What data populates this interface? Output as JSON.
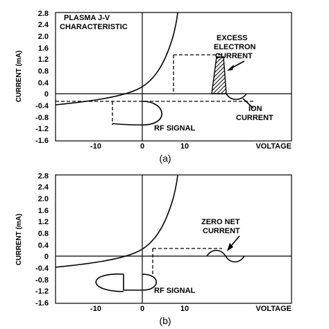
{
  "panel_a": {
    "y_ticks": [
      "2.8",
      "2.4",
      "2.0",
      "1.6",
      "1.2",
      "0.8",
      "0.4",
      "0",
      "-0.4",
      "-0.8",
      "-1.2",
      "-1.6"
    ],
    "x_ticks": [
      "-10",
      "0",
      "10"
    ],
    "y_axis_label": "CURRENT (mA)",
    "x_axis_label": "VOLTAGE",
    "title_line1": "PLASMA J-V",
    "title_line2": "CHARACTERISTIC",
    "excess_line1": "EXCESS",
    "excess_line2": "ELECTRON",
    "excess_line3": "CURRENT",
    "ion_line1": "ION",
    "ion_line2": "CURRENT",
    "rf_label": "RF SIGNAL",
    "caption": "(a)"
  },
  "panel_b": {
    "y_ticks": [
      "2.8",
      "2.4",
      "2.0",
      "1.6",
      "1.2",
      "0.8",
      "0.4",
      "0",
      "-0.4",
      "-0.8",
      "-1.2",
      "-1.6"
    ],
    "x_ticks": [
      "-10",
      "0",
      "10"
    ],
    "y_axis_label": "CURRENT (mA)",
    "x_axis_label": "VOLTAGE",
    "zero_line1": "ZERO NET",
    "zero_line2": "CURRENT",
    "rf_label": "RF SIGNAL",
    "caption": "(b)"
  }
}
